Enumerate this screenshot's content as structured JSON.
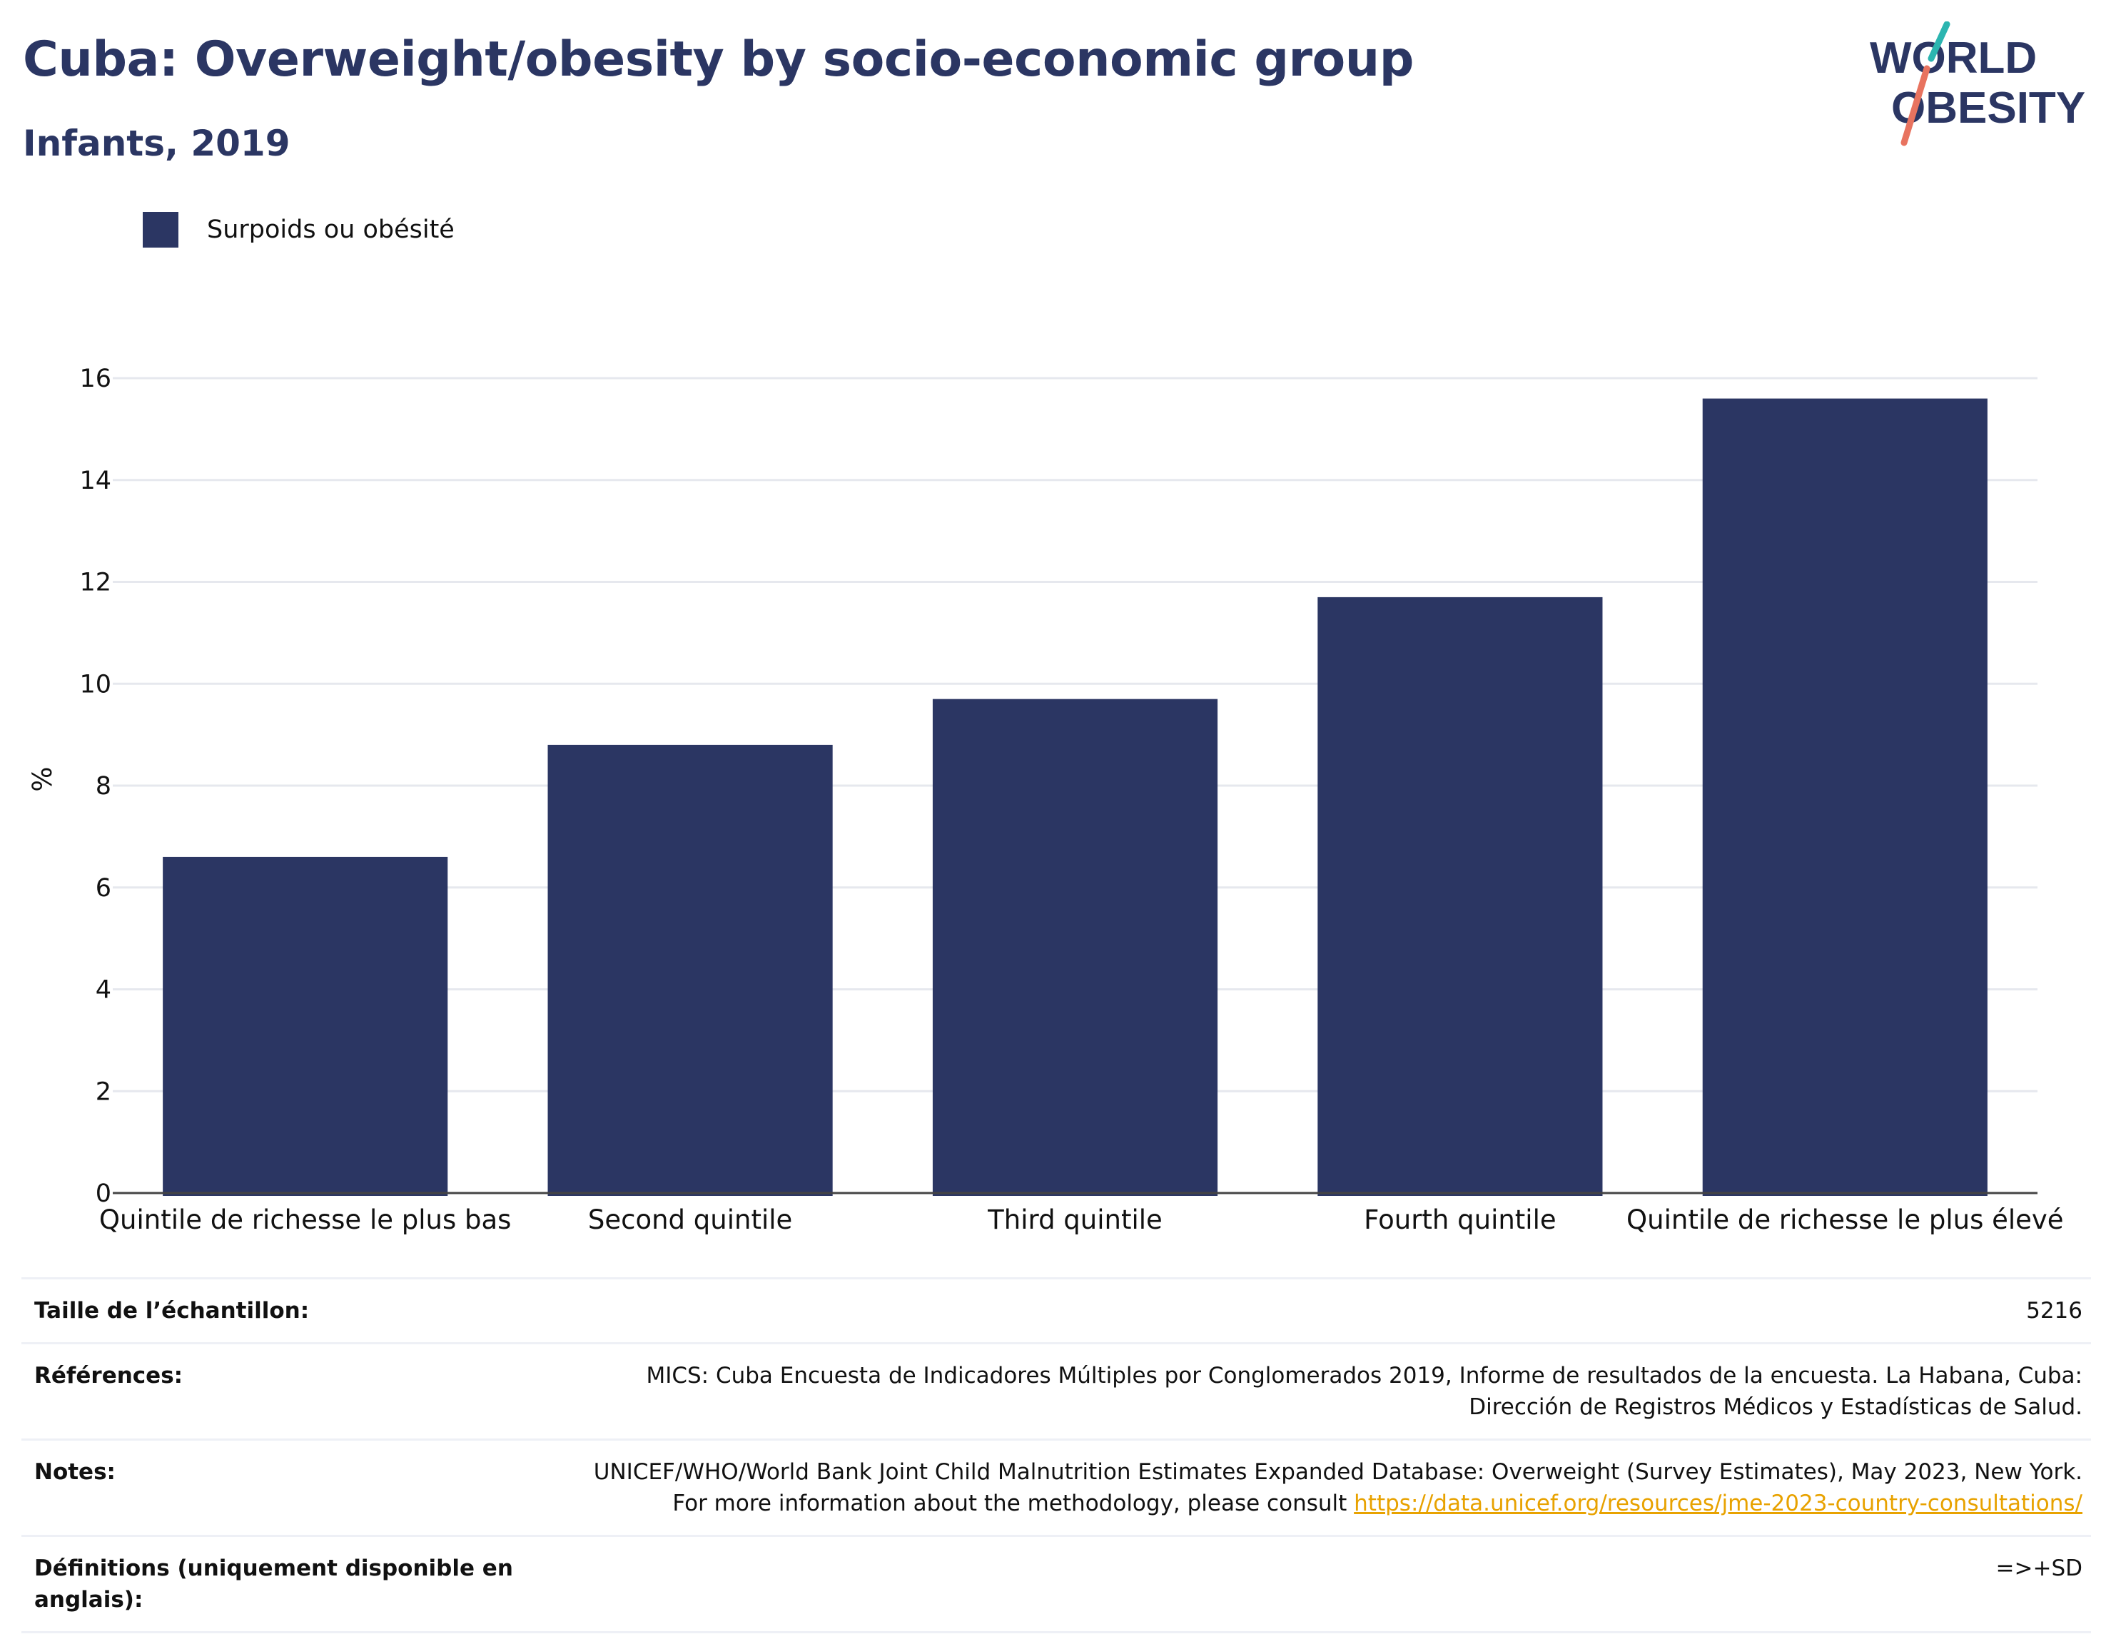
{
  "header": {
    "title": "Cuba: Overweight/obesity by socio-economic group",
    "subtitle": "Infants, 2019"
  },
  "logo": {
    "line1": "WORLD",
    "line2": "OBESITY",
    "colors": {
      "navy": "#2b3663",
      "teal": "#2bb5b0",
      "coral": "#e8735f"
    }
  },
  "legend": {
    "label": "Surpoids ou obésité",
    "color": "#2b3663"
  },
  "chart_data": {
    "type": "bar",
    "categories": [
      "Quintile de richesse le plus bas",
      "Second quintile",
      "Third quintile",
      "Fourth quintile",
      "Quintile de richesse le plus élevé"
    ],
    "series": [
      {
        "name": "Surpoids ou obésité",
        "values": [
          6.6,
          8.8,
          9.7,
          11.7,
          15.6
        ]
      }
    ],
    "xlabel": "",
    "ylabel": "%",
    "ylim": [
      0,
      16
    ],
    "yticks": [
      0,
      2,
      4,
      6,
      8,
      10,
      12,
      14,
      16
    ],
    "grid": true,
    "legend_position": "top-left",
    "bar_color": "#2b3663"
  },
  "info": {
    "sample_size": {
      "label": "Taille de l’échantillon:",
      "value": "5216"
    },
    "references": {
      "label": "Références:",
      "value": "MICS: Cuba Encuesta de Indicadores Múltiples por Conglomerados 2019, Informe de resultados de la encuesta. La Habana, Cuba: Dirección de Registros Médicos y Estadísticas de Salud."
    },
    "notes": {
      "label": "Notes:",
      "value": "UNICEF/WHO/World Bank Joint Child Malnutrition Estimates Expanded Database: Overweight (Survey Estimates), May 2023, New York. For more information about the methodology, please consult",
      "link": "https://data.unicef.org/resources/jme-2023-country-consultations/",
      "link_color": "#e8a200"
    },
    "definitions": {
      "label": "Définitions (uniquement disponible en anglais):",
      "value": "=>+SD"
    }
  }
}
